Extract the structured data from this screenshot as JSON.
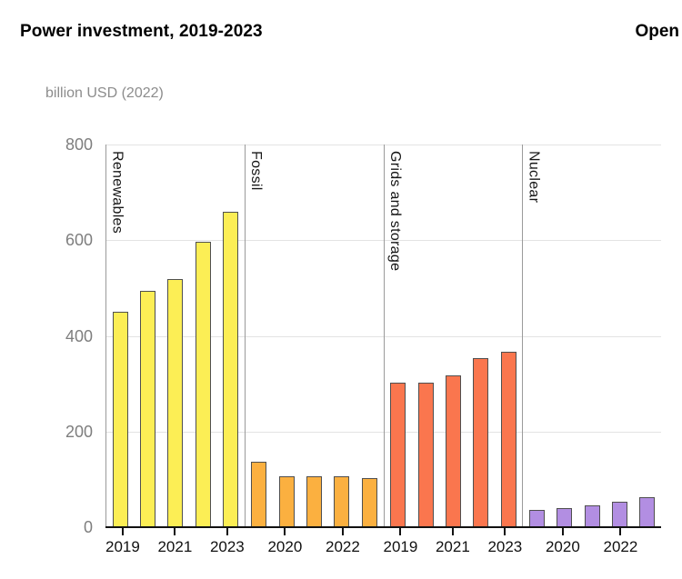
{
  "header": {
    "title": "Power investment, 2019-2023",
    "action_label": "Open"
  },
  "chart_data": {
    "type": "bar",
    "title": "Power investment, 2019-2023",
    "ylabel": "billion USD (2022)",
    "xlabel": "",
    "ylim": [
      0,
      800
    ],
    "yticks": [
      0,
      200,
      400,
      600,
      800
    ],
    "grid": true,
    "legend_position": "none",
    "categories": [
      "2019",
      "2020",
      "2021",
      "2022",
      "2023"
    ],
    "series": [
      {
        "name": "Renewables",
        "color": "#FCEE55",
        "values": [
          450,
          495,
          519,
          597,
          659
        ],
        "labeled_year_indices": [
          0,
          2,
          4
        ]
      },
      {
        "name": "Fossil",
        "color": "#FBB040",
        "values": [
          136,
          107,
          107,
          107,
          103
        ],
        "labeled_year_indices": [
          1,
          3
        ]
      },
      {
        "name": "Grids and storage",
        "color": "#FA764E",
        "values": [
          302,
          302,
          317,
          353,
          366
        ],
        "labeled_year_indices": [
          0,
          2,
          4
        ]
      },
      {
        "name": "Nuclear",
        "color": "#B28EE2",
        "values": [
          36,
          40,
          45,
          53,
          62
        ],
        "labeled_year_indices": [
          1,
          3
        ]
      }
    ],
    "colors": {
      "bar_border": "#4f4f4f",
      "gridline": "#e3e3e3",
      "section_divider": "#9a9a9a",
      "axis_line": "#111111",
      "y_tick_text": "#7e7e7e",
      "x_tick_text": "#111111",
      "subtitle_text": "#8c8c8c",
      "title_text": "#000000"
    }
  }
}
